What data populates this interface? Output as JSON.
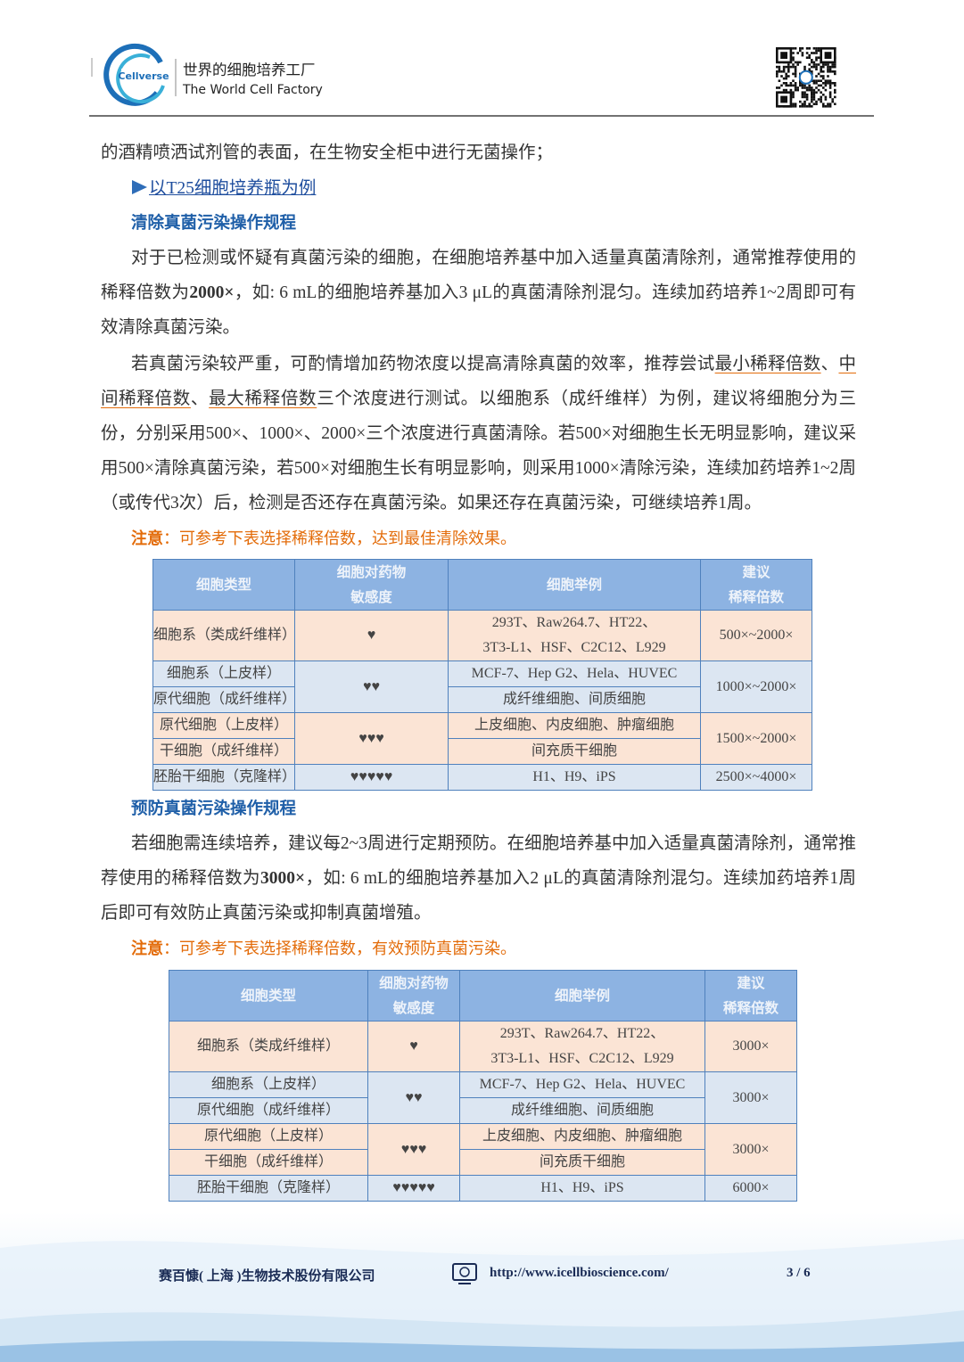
{
  "header": {
    "logo": "Cellverse",
    "tagline_cn": "世界的细胞培养工厂",
    "tagline_en": "The World Cell Factory"
  },
  "body": {
    "p0": "的酒精喷洒试剂管的表面，在生物安全柜中进行无菌操作；",
    "link": "以T25细胞培养瓶为例",
    "h1": "清除真菌污染操作规程",
    "p1": [
      "对于已检测或怀疑有真菌污染的细胞，在细胞培养基中加入适量真菌清除剂，通常推荐使用的稀释倍数为",
      "2000×",
      "，如: 6 mL的细胞培养基加入3 μL的真菌清除剂混匀。连续加药培养1~2周即可有效清除真菌污染。"
    ],
    "p2": [
      "若真菌污染较严重，可酌情增加药物浓度以提高清除真菌的效率，推荐尝试",
      "最小稀释倍数",
      "、",
      "中间稀释倍数",
      "、",
      "最大稀释倍数",
      "三个浓度进行测试。以细胞系（成纤维样）为例，建议将细胞分为三份，分别采用500×、1000×、2000×三个浓度进行真菌清除。若500×对细胞生长无明显影响，建议采用500×清除真菌污染，若500×对细胞生长有明显影响，则采用1000×清除污染，连续加药培养1~2周（或传代3次）后，检测是否还存在真菌污染。如果还存在真菌污染，可继续培养1周。"
    ],
    "note1": [
      "注意",
      "：可参考下表选择稀释倍数，达到最佳清除效果。"
    ],
    "table1": {
      "header": [
        "细胞类型",
        [
          "细胞对药物",
          "敏感度"
        ],
        "细胞举例",
        [
          "建议",
          "稀释倍数"
        ]
      ],
      "rows": [
        [
          "细胞系（类成纤维样）",
          "♥",
          [
            "293T、Raw264.7、HT22、",
            "3T3-L1、HSF、C2C12、L929"
          ],
          "500×~2000×"
        ],
        [
          "细胞系（上皮样）",
          "♥♥",
          "MCF-7、Hep G2、Hela、HUVEC",
          "1000×~2000×"
        ],
        [
          "原代细胞（成纤维样）",
          "成纤维细胞、间质细胞"
        ],
        [
          "原代细胞（上皮样）",
          "♥♥♥",
          "上皮细胞、内皮细胞、肿瘤细胞",
          "1500×~2000×"
        ],
        [
          "干细胞（成纤维样）",
          "间充质干细胞"
        ],
        [
          "胚胎干细胞（克隆样）",
          "♥♥♥♥♥",
          "H1、H9、iPS",
          "2500×~4000×"
        ]
      ]
    },
    "h2": "预防真菌污染操作规程",
    "p3": [
      "若细胞需连续培养，建议每2~3周进行定期预防。在细胞培养基中加入适量真菌清除剂，通常推荐使用的稀释倍数为",
      "3000×",
      "，如: 6 mL的细胞培养基加入2 μL的真菌清除剂混匀。连续加药培养1周后即可有效防止真菌污染或抑制真菌增殖。"
    ],
    "note2": [
      "注意",
      "：可参考下表选择稀释倍数，有效预防真菌污染。"
    ],
    "table2": {
      "header": [
        "细胞类型",
        [
          "细胞对药物",
          "敏感度"
        ],
        "细胞举例",
        [
          "建议",
          "稀释倍数"
        ]
      ],
      "rows": [
        [
          "细胞系（类成纤维样）",
          "♥",
          [
            "293T、Raw264.7、HT22、",
            "3T3-L1、HSF、C2C12、L929"
          ],
          "3000×"
        ],
        [
          "细胞系（上皮样）",
          "♥♥",
          "MCF-7、Hep G2、Hela、HUVEC",
          "3000×"
        ],
        [
          "原代细胞（成纤维样）",
          "成纤维细胞、间质细胞"
        ],
        [
          "原代细胞（上皮样）",
          "♥♥♥",
          "上皮细胞、内皮细胞、肿瘤细胞",
          "3000×"
        ],
        [
          "干细胞（成纤维样）",
          "间充质干细胞"
        ],
        [
          "胚胎干细胞（克隆样）",
          "♥♥♥♥♥",
          "H1、H9、iPS",
          "6000×"
        ]
      ]
    }
  },
  "footer": {
    "company": "赛百慷( 上海 )生物技术股份有限公司",
    "url": "http://www.icellbioscience.com/",
    "page": "3 / 6"
  }
}
